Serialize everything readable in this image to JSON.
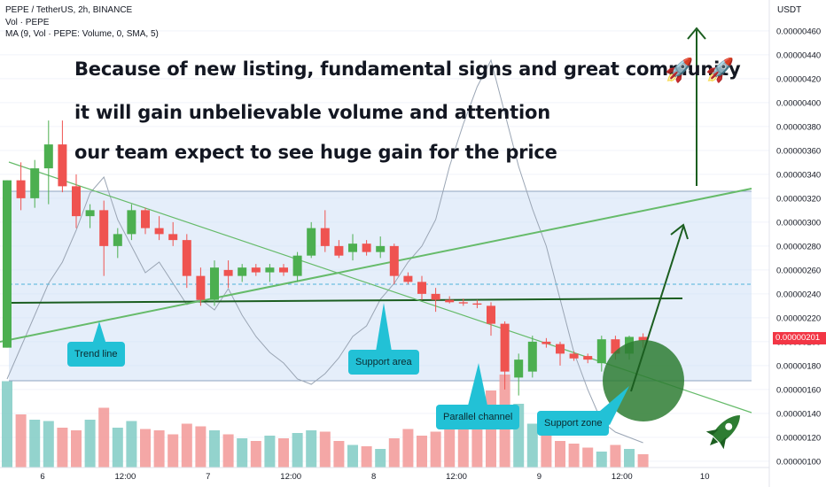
{
  "header": {
    "symbol_line": "PEPE / TetherUS, 2h, BINANCE",
    "vol_line": "Vol · PEPE",
    "ma_line": "MA (9, Vol · PEPE: Volume, 0, SMA, 5)"
  },
  "price_axis_title": "USDT",
  "current_price": "0.00000201",
  "annotations": {
    "line1": "Because of new listing, fundamental signs and great community",
    "line2": "it will gain unbelievable volume and attention",
    "line3": "our team expect to see huge gain for the price"
  },
  "callouts": {
    "trend_line": "Trend line",
    "support_area": "Support area",
    "parallel_channel": "Parallel channel",
    "support_zone": "Support zone"
  },
  "icons": {
    "rocket_emoji": "🚀",
    "rocket_icon": "rocket-icon"
  },
  "colors": {
    "up": "#4caf50",
    "down": "#ef5350",
    "vol_up": "#80cbc4",
    "vol_down": "#f29896",
    "trend": "#66bb6a",
    "arrow": "#1b5e20",
    "channel_fill": "#cfe0f5",
    "callout": "#22c1d6",
    "last_price": "#f23645"
  },
  "chart_data": {
    "type": "candlestick",
    "time_labels": [
      "6",
      "12:00",
      "7",
      "12:00",
      "8",
      "12:00",
      "9",
      "12:00",
      "10"
    ],
    "y_ticks": [
      "0.00000460",
      "0.00000440",
      "0.00000420",
      "0.00000400",
      "0.00000380",
      "0.00000360",
      "0.00000340",
      "0.00000320",
      "0.00000300",
      "0.00000280",
      "0.00000260",
      "0.00000240",
      "0.00000220",
      "0.00000200",
      "0.00000180",
      "0.00000160",
      "0.00000140",
      "0.00000120",
      "0.00000100"
    ],
    "ylim": [
      9.4e-07,
      4.71e-06
    ],
    "candles": [
      [
        1.95e-06,
        3.35e-06,
        1.95e-06,
        3.35e-06
      ],
      [
        3.35e-06,
        3.5e-06,
        3.1e-06,
        3.2e-06
      ],
      [
        3.2e-06,
        3.52e-06,
        3.12e-06,
        3.45e-06
      ],
      [
        3.45e-06,
        3.85e-06,
        3.15e-06,
        3.65e-06
      ],
      [
        3.65e-06,
        3.85e-06,
        3.25e-06,
        3.3e-06
      ],
      [
        3.3e-06,
        3.4e-06,
        2.95e-06,
        3.05e-06
      ],
      [
        3.05e-06,
        3.15e-06,
        2.95e-06,
        3.1e-06
      ],
      [
        3.1e-06,
        3.18e-06,
        2.55e-06,
        2.8e-06
      ],
      [
        2.8e-06,
        2.95e-06,
        2.7e-06,
        2.9e-06
      ],
      [
        2.9e-06,
        3.15e-06,
        2.85e-06,
        3.1e-06
      ],
      [
        3.1e-06,
        3.12e-06,
        2.9e-06,
        2.95e-06
      ],
      [
        2.95e-06,
        3.05e-06,
        2.85e-06,
        2.9e-06
      ],
      [
        2.9e-06,
        3e-06,
        2.8e-06,
        2.85e-06
      ],
      [
        2.85e-06,
        2.9e-06,
        2.45e-06,
        2.55e-06
      ],
      [
        2.55e-06,
        2.62e-06,
        2.3e-06,
        2.35e-06
      ],
      [
        2.35e-06,
        2.68e-06,
        2.3e-06,
        2.62e-06
      ],
      [
        2.6e-06,
        2.68e-06,
        2.45e-06,
        2.55e-06
      ],
      [
        2.55e-06,
        2.65e-06,
        2.5e-06,
        2.62e-06
      ],
      [
        2.62e-06,
        2.65e-06,
        2.55e-06,
        2.58e-06
      ],
      [
        2.58e-06,
        2.65e-06,
        2.5e-06,
        2.62e-06
      ],
      [
        2.62e-06,
        2.65e-06,
        2.55e-06,
        2.58e-06
      ],
      [
        2.55e-06,
        2.75e-06,
        2.5e-06,
        2.72e-06
      ],
      [
        2.72e-06,
        3e-06,
        2.7e-06,
        2.95e-06
      ],
      [
        2.95e-06,
        3.1e-06,
        2.75e-06,
        2.8e-06
      ],
      [
        2.8e-06,
        2.85e-06,
        2.7e-06,
        2.72e-06
      ],
      [
        2.75e-06,
        2.9e-06,
        2.68e-06,
        2.82e-06
      ],
      [
        2.82e-06,
        2.85e-06,
        2.72e-06,
        2.75e-06
      ],
      [
        2.75e-06,
        2.88e-06,
        2.7e-06,
        2.8e-06
      ],
      [
        2.8e-06,
        2.82e-06,
        2.48e-06,
        2.55e-06
      ],
      [
        2.55e-06,
        2.58e-06,
        2.48e-06,
        2.5e-06
      ],
      [
        2.5e-06,
        2.55e-06,
        2.35e-06,
        2.4e-06
      ],
      [
        2.4e-06,
        2.45e-06,
        2.25e-06,
        2.35e-06
      ],
      [
        2.35e-06,
        2.38e-06,
        2.32e-06,
        2.33e-06
      ],
      [
        2.33e-06,
        2.36e-06,
        2.3e-06,
        2.32e-06
      ],
      [
        2.32e-06,
        2.35e-06,
        2.28e-06,
        2.31e-06
      ],
      [
        2.3e-06,
        2.33e-06,
        2.05e-06,
        2.15e-06
      ],
      [
        2.15e-06,
        2.17e-06,
        1.6e-06,
        1.75e-06
      ],
      [
        1.7e-06,
        1.9e-06,
        1.55e-06,
        1.85e-06
      ],
      [
        1.75e-06,
        2.05e-06,
        1.7e-06,
        2e-06
      ],
      [
        2e-06,
        2.03e-06,
        1.95e-06,
        1.98e-06
      ],
      [
        1.98e-06,
        2e-06,
        1.8e-06,
        1.9e-06
      ],
      [
        1.9e-06,
        1.92e-06,
        1.84e-06,
        1.86e-06
      ],
      [
        1.88e-06,
        1.9e-06,
        1.82e-06,
        1.85e-06
      ],
      [
        1.82e-06,
        2.05e-06,
        1.75e-06,
        2.02e-06
      ],
      [
        2.02e-06,
        2.05e-06,
        1.85e-06,
        1.9e-06
      ],
      [
        1.9e-06,
        2.05e-06,
        1.85e-06,
        2.04e-06
      ],
      [
        2.04e-06,
        2.07e-06,
        1.95e-06,
        2.01e-06
      ]
    ],
    "volume": [
      0.65,
      0.4,
      0.36,
      0.35,
      0.3,
      0.28,
      0.36,
      0.45,
      0.3,
      0.35,
      0.29,
      0.28,
      0.25,
      0.33,
      0.31,
      0.28,
      0.25,
      0.22,
      0.2,
      0.24,
      0.22,
      0.26,
      0.28,
      0.27,
      0.2,
      0.17,
      0.16,
      0.14,
      0.22,
      0.29,
      0.24,
      0.27,
      0.3,
      0.36,
      0.42,
      0.58,
      0.7,
      0.48,
      0.33,
      0.27,
      0.2,
      0.18,
      0.15,
      0.12,
      0.17,
      0.14,
      0.1
    ],
    "volume_ma": [
      0.3,
      0.36,
      0.42,
      0.48,
      0.52,
      0.58,
      0.65,
      0.68,
      0.6,
      0.55,
      0.5,
      0.52,
      0.48,
      0.44,
      0.45,
      0.43,
      0.47,
      0.42,
      0.38,
      0.35,
      0.33,
      0.3,
      0.29,
      0.31,
      0.34,
      0.38,
      0.4,
      0.45,
      0.48,
      0.52,
      0.55,
      0.6,
      0.7,
      0.78,
      0.85,
      0.9,
      0.8,
      0.7,
      0.62,
      0.55,
      0.45,
      0.35,
      0.28,
      0.22,
      0.2,
      0.19,
      0.18
    ]
  }
}
